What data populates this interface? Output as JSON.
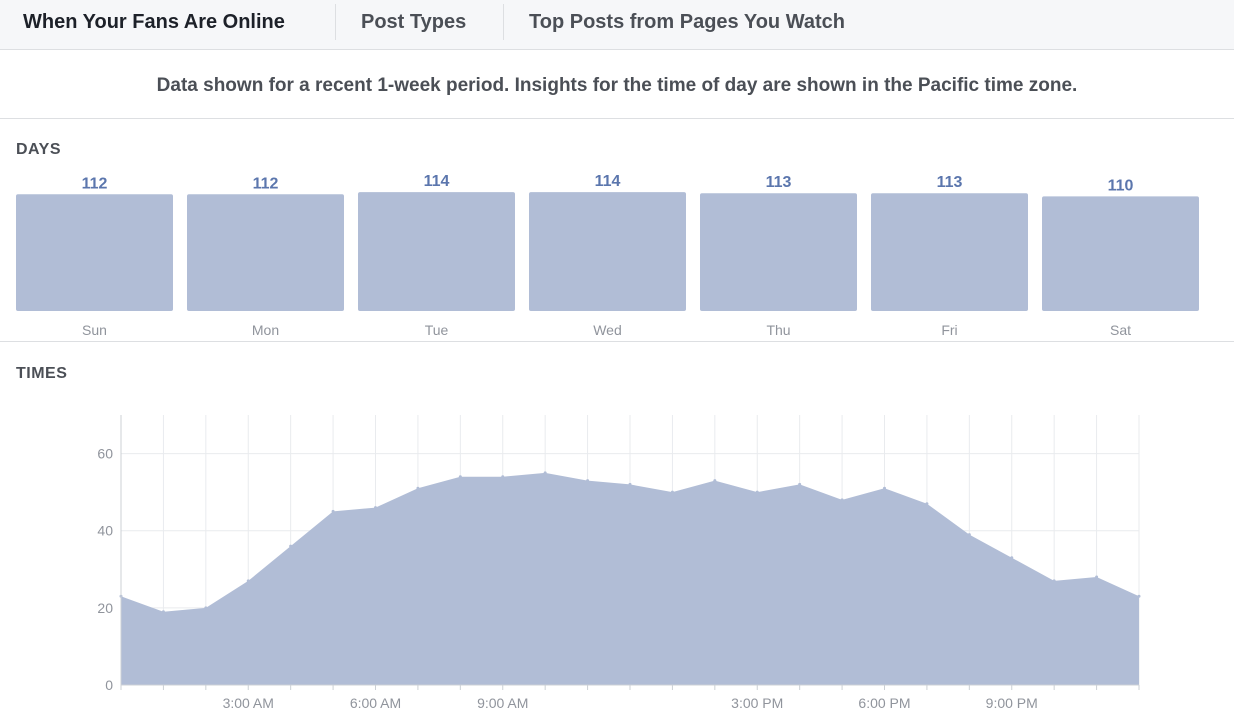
{
  "tabs": [
    {
      "label": "When Your Fans Are Online",
      "active": true
    },
    {
      "label": "Post Types",
      "active": false
    },
    {
      "label": "Top Posts from Pages You Watch",
      "active": false
    }
  ],
  "info_text": "Data shown for a recent 1-week period. Insights for the time of day are shown in the Pacific time zone.",
  "days_section": {
    "title": "DAYS"
  },
  "times_section": {
    "title": "TIMES"
  },
  "colors": {
    "bar_fill": "#b1bdd6",
    "area_fill": "#b1bdd6",
    "value_label": "#5b76ad",
    "axis_text": "#90949c",
    "grid": "#e9ebee"
  },
  "chart_data": [
    {
      "type": "bar",
      "categories": [
        "Sun",
        "Mon",
        "Tue",
        "Wed",
        "Thu",
        "Fri",
        "Sat"
      ],
      "values": [
        112,
        112,
        114,
        114,
        113,
        113,
        110
      ],
      "data_labels": [
        "112",
        "112",
        "114",
        "114",
        "113",
        "113",
        "110"
      ],
      "ylim": [
        0,
        118
      ],
      "grid": false
    },
    {
      "type": "area",
      "x": [
        0,
        1,
        2,
        3,
        4,
        5,
        6,
        7,
        8,
        9,
        10,
        11,
        12,
        13,
        14,
        15,
        16,
        17,
        18,
        19,
        20,
        21,
        22,
        23,
        24
      ],
      "values": [
        23,
        19,
        20,
        27,
        36,
        45,
        46,
        51,
        54,
        54,
        55,
        53,
        52,
        50,
        53,
        50,
        52,
        48,
        51,
        47,
        39,
        33,
        27,
        28,
        23
      ],
      "xlim": [
        0,
        24
      ],
      "ylim": [
        0,
        70
      ],
      "yticks": [
        0,
        20,
        40,
        60
      ],
      "xticks": [
        {
          "x": 3,
          "label": "3:00 AM"
        },
        {
          "x": 6,
          "label": "6:00 AM"
        },
        {
          "x": 9,
          "label": "9:00 AM"
        },
        {
          "x": 15,
          "label": "3:00 PM"
        },
        {
          "x": 18,
          "label": "6:00 PM"
        },
        {
          "x": 21,
          "label": "9:00 PM"
        }
      ],
      "grid": true
    }
  ]
}
